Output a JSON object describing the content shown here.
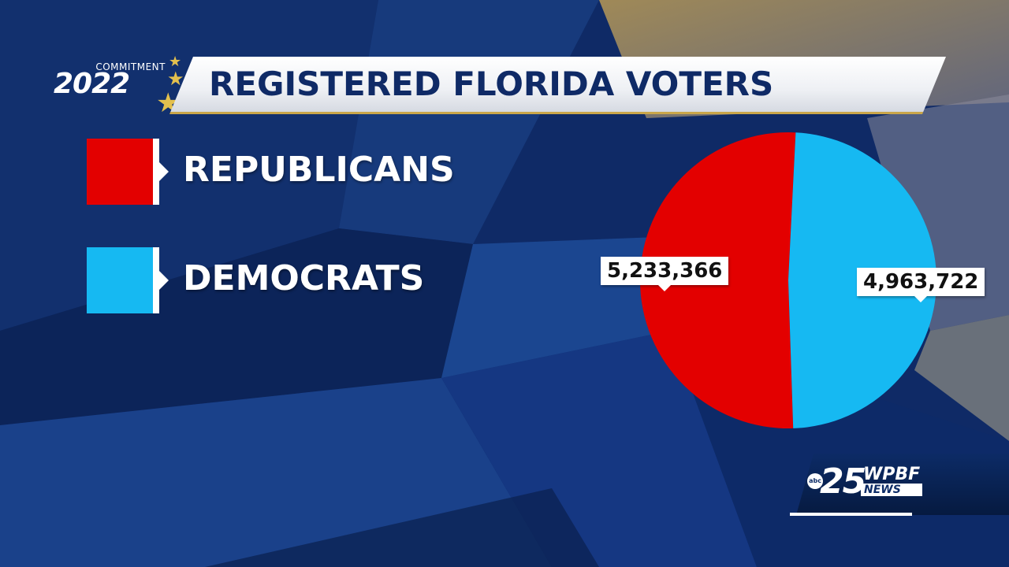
{
  "logo": {
    "small_text": "COMMITMENT",
    "year": "2022"
  },
  "header": {
    "title": "REGISTERED FLORIDA VOTERS"
  },
  "colors": {
    "republicans": "#e30000",
    "democrats": "#16b9f2",
    "background": "#0f2a66"
  },
  "legend": [
    {
      "label": "REPUBLICANS",
      "color": "#e30000"
    },
    {
      "label": "DEMOCRATS",
      "color": "#16b9f2"
    }
  ],
  "chart_data": {
    "type": "pie",
    "title": "REGISTERED FLORIDA VOTERS",
    "categories": [
      "REPUBLICANS",
      "DEMOCRATS"
    ],
    "values": [
      5233366,
      4963722
    ],
    "value_labels": [
      "5,233,366",
      "4,963,722"
    ],
    "colors": [
      "#e30000",
      "#16b9f2"
    ],
    "legend": "left"
  },
  "station": {
    "abc": "abc",
    "channel": "25",
    "call_sign": "WPBF",
    "news": "NEWS"
  }
}
